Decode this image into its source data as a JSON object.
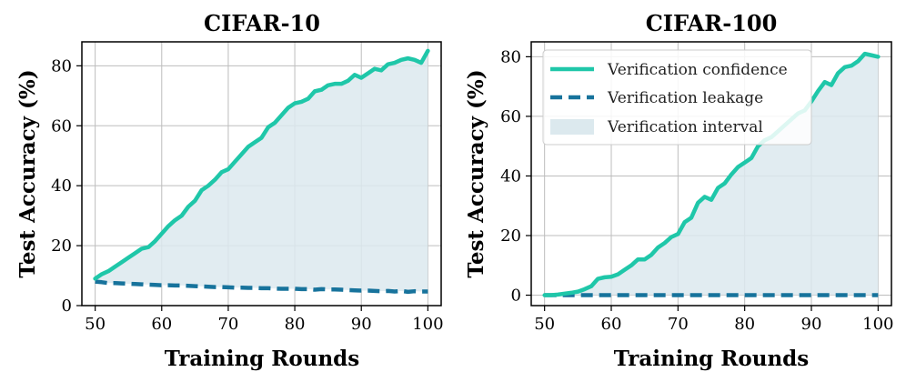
{
  "colors": {
    "confidence": "#1fc7a9",
    "leakage": "#17739c",
    "interval_fill": "#dce9ee",
    "grid": "#bdbdbd"
  },
  "chart_data": [
    {
      "type": "line",
      "title": "CIFAR-10",
      "xlabel": "Training Rounds",
      "ylabel": "Test Accuracy (%)",
      "xlim": [
        48,
        102
      ],
      "ylim": [
        0,
        88
      ],
      "xticks": [
        50,
        60,
        70,
        80,
        90,
        100
      ],
      "yticks": [
        0,
        20,
        40,
        60,
        80
      ],
      "grid": true,
      "legend": null,
      "x": [
        50,
        51,
        52,
        53,
        54,
        55,
        56,
        57,
        58,
        59,
        60,
        61,
        62,
        63,
        64,
        65,
        66,
        67,
        68,
        69,
        70,
        71,
        72,
        73,
        74,
        75,
        76,
        77,
        78,
        79,
        80,
        81,
        82,
        83,
        84,
        85,
        86,
        87,
        88,
        89,
        90,
        91,
        92,
        93,
        94,
        95,
        96,
        97,
        98,
        99,
        100
      ],
      "series": [
        {
          "name": "Verification confidence",
          "style": "solid",
          "values": [
            9,
            10.5,
            11.5,
            13,
            14.5,
            16,
            17.5,
            19,
            19.5,
            21.5,
            24,
            26.5,
            28.5,
            30,
            33,
            35,
            38.5,
            40,
            42,
            44.5,
            45.5,
            48,
            50.5,
            53,
            54.5,
            56,
            59.5,
            61,
            63.5,
            66,
            67.5,
            68,
            69,
            71.5,
            72,
            73.5,
            74,
            74,
            75,
            77,
            76,
            77.5,
            79,
            78.5,
            80.5,
            81,
            82,
            82.5,
            82,
            81,
            85
          ]
        },
        {
          "name": "Verification leakage",
          "style": "dashed",
          "values": [
            8,
            7.8,
            7.5,
            7.5,
            7.4,
            7.3,
            7.2,
            7.1,
            7,
            6.9,
            6.8,
            6.8,
            6.7,
            6.7,
            6.6,
            6.5,
            6.4,
            6.3,
            6.2,
            6.2,
            6.1,
            6,
            6,
            5.9,
            5.9,
            5.8,
            5.8,
            5.7,
            5.6,
            5.6,
            5.6,
            5.5,
            5.5,
            5.3,
            5.5,
            5.4,
            5.4,
            5.3,
            5.2,
            5.1,
            5,
            5,
            4.9,
            4.8,
            4.9,
            4.7,
            4.9,
            4.6,
            4.8,
            4.7,
            4.7
          ]
        }
      ]
    },
    {
      "type": "line",
      "title": "CIFAR-100",
      "xlabel": "Training Rounds",
      "ylabel": "Test Accuracy (%)",
      "xlim": [
        48,
        102
      ],
      "ylim": [
        -3.5,
        85
      ],
      "xticks": [
        50,
        60,
        70,
        80,
        90,
        100
      ],
      "yticks": [
        0,
        20,
        40,
        60,
        80
      ],
      "grid": true,
      "legend": {
        "placement": "upper-left",
        "entries": [
          "Verification confidence",
          "Verification leakage",
          "Verification interval"
        ]
      },
      "x": [
        50,
        51,
        52,
        53,
        54,
        55,
        56,
        57,
        58,
        59,
        60,
        61,
        62,
        63,
        64,
        65,
        66,
        67,
        68,
        69,
        70,
        71,
        72,
        73,
        74,
        75,
        76,
        77,
        78,
        79,
        80,
        81,
        82,
        83,
        84,
        85,
        86,
        87,
        88,
        89,
        90,
        91,
        92,
        93,
        94,
        95,
        96,
        97,
        98,
        99,
        100
      ],
      "series": [
        {
          "name": "Verification confidence",
          "style": "solid",
          "values": [
            0,
            0,
            0.2,
            0.5,
            0.8,
            1.2,
            2,
            3,
            5.5,
            6,
            6.2,
            7,
            8.5,
            10,
            12,
            12,
            13.5,
            16,
            17.5,
            19.5,
            20.5,
            24.5,
            26,
            31,
            33,
            32,
            36,
            37.5,
            40.5,
            43,
            44.5,
            46,
            50,
            52,
            53,
            55,
            57,
            59,
            61,
            62,
            65,
            68.5,
            71.5,
            70.5,
            74.5,
            76.5,
            77,
            78.5,
            81,
            80.5,
            80
          ]
        },
        {
          "name": "Verification leakage",
          "style": "dashed",
          "values": [
            0,
            0,
            0,
            0,
            0,
            0,
            0,
            0,
            0,
            0,
            0,
            0,
            0,
            0,
            0,
            0,
            0,
            0,
            0,
            0,
            0,
            0,
            0,
            0,
            0,
            0,
            0,
            0,
            0,
            0,
            0,
            0,
            0,
            0,
            0,
            0,
            0,
            0,
            0,
            0,
            0,
            0,
            0,
            0,
            0,
            0,
            0,
            0,
            0,
            0,
            0
          ]
        }
      ]
    }
  ]
}
